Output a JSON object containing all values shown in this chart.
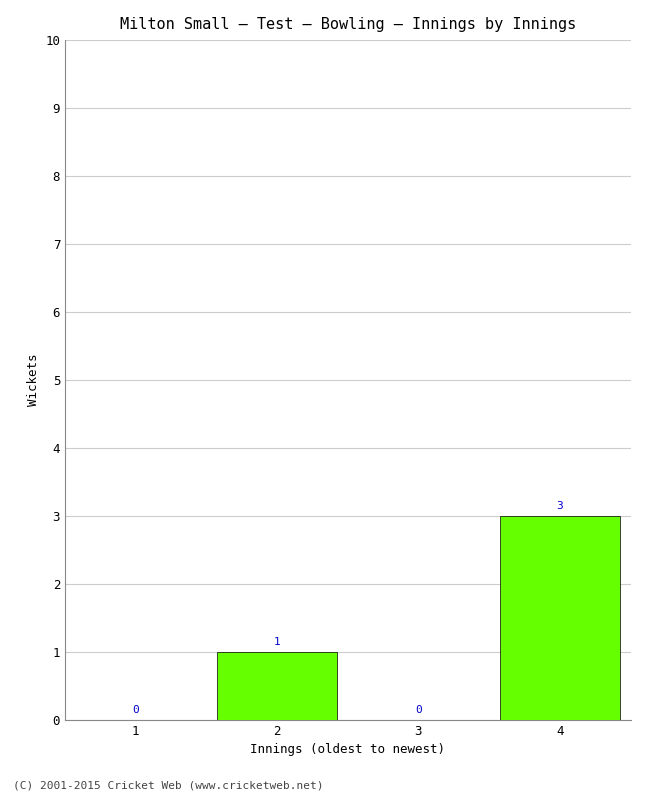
{
  "title": "Milton Small – Test – Bowling – Innings by Innings",
  "xlabel": "Innings (oldest to newest)",
  "ylabel": "Wickets",
  "categories": [
    1,
    2,
    3,
    4
  ],
  "values": [
    0,
    1,
    0,
    3
  ],
  "bar_color": "#66ff00",
  "bar_edge_color": "#000000",
  "ylim": [
    0,
    10
  ],
  "yticks": [
    0,
    1,
    2,
    3,
    4,
    5,
    6,
    7,
    8,
    9,
    10
  ],
  "xticks": [
    1,
    2,
    3,
    4
  ],
  "value_label_color": "#0000cc",
  "value_fontsize": 8,
  "title_fontsize": 11,
  "axis_label_fontsize": 9,
  "tick_fontsize": 9,
  "footer_text": "(C) 2001-2015 Cricket Web (www.cricketweb.net)",
  "footer_fontsize": 8,
  "background_color": "#ffffff",
  "grid_color": "#cccccc",
  "bar_width": 0.85
}
